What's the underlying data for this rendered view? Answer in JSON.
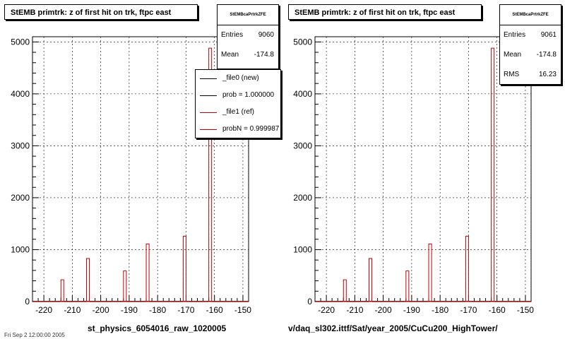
{
  "colors": {
    "ref": "#c00000",
    "new": "#000000",
    "grid": "#000000"
  },
  "footer": "Fri Sep 2 12:00:00 2005",
  "panels": [
    {
      "title": "StEMB primtrk: z of first hit on trk, ftpc east",
      "stats": {
        "name": "StEMBcaPrtrkZFE",
        "rows": [
          {
            "label": "Entries",
            "value": "9060"
          },
          {
            "label": "Mean",
            "value": "-174.8"
          }
        ]
      },
      "legend": [
        {
          "label": "_file0 (new)",
          "color": "#000000"
        },
        {
          "label": "prob = 1.000000",
          "color": "#000000"
        },
        {
          "label": "_file1 (ref)",
          "color": "#c00000"
        },
        {
          "label": "probN = 0.999987",
          "color": "#c00000"
        }
      ],
      "xtitle": "st_physics_6054016_raw_1020005"
    },
    {
      "title": "StEMB primtrk: z of first hit on trk, ftpc east",
      "stats": {
        "name": "StEMBcaPrtrkZFE",
        "rows": [
          {
            "label": "Entries",
            "value": "9061"
          },
          {
            "label": "Mean",
            "value": "-174.8"
          },
          {
            "label": "RMS",
            "value": "16.23"
          }
        ]
      },
      "legend": [],
      "xtitle": "v/daq_sl302.ittf/Sat/year_2005/CuCu200_HighTower/"
    }
  ],
  "chart_data": [
    {
      "type": "bar",
      "title": "StEMB primtrk: z of first hit on trk, ftpc east",
      "xlabel": "st_physics_6054016_raw_1020005",
      "ylabel": "",
      "xlim": [
        -224,
        -148
      ],
      "ylim": [
        0,
        5100
      ],
      "xticks": [
        -220,
        -210,
        -200,
        -190,
        -180,
        -170,
        -160,
        -150
      ],
      "yticks": [
        0,
        1000,
        2000,
        3000,
        4000,
        5000
      ],
      "grid": true,
      "legend_position": "top-right",
      "series": [
        {
          "name": "_file1 (ref)",
          "x": [
            -214,
            -205,
            -192,
            -184,
            -171,
            -162
          ],
          "values": [
            420,
            830,
            590,
            1110,
            1260,
            4880
          ]
        }
      ]
    },
    {
      "type": "bar",
      "title": "StEMB primtrk: z of first hit on trk, ftpc east",
      "xlabel": "v/daq_sl302.ittf/Sat/year_2005/CuCu200_HighTower/",
      "ylabel": "",
      "xlim": [
        -224,
        -148
      ],
      "ylim": [
        0,
        5100
      ],
      "xticks": [
        -220,
        -210,
        -200,
        -190,
        -180,
        -170,
        -160,
        -150
      ],
      "yticks": [
        0,
        1000,
        2000,
        3000,
        4000,
        5000
      ],
      "grid": true,
      "series": [
        {
          "name": "",
          "x": [
            -214,
            -205,
            -192,
            -184,
            -171,
            -162
          ],
          "values": [
            420,
            830,
            590,
            1110,
            1260,
            4880
          ]
        }
      ]
    }
  ]
}
